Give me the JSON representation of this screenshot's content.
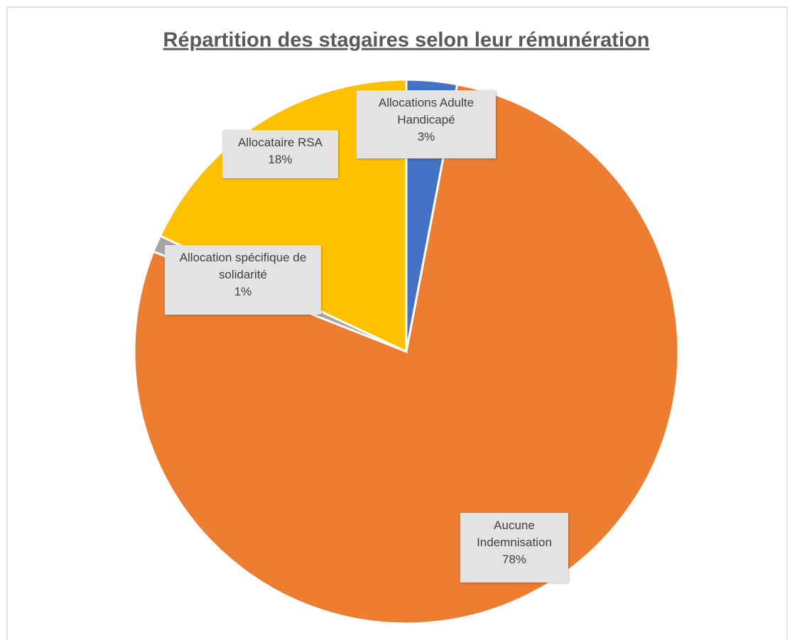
{
  "chart_data": {
    "type": "pie",
    "title": "Répartition des stagaires selon leur rémunération",
    "categories": [
      "Allocations Adulte Handicapé",
      "Aucune Indemnisation",
      "Allocation spécifique de solidarité",
      "Allocataire RSA"
    ],
    "values": [
      3,
      78,
      1,
      18
    ],
    "value_labels": [
      "3%",
      "78%",
      "1%",
      "18%"
    ],
    "colors": [
      "#4472c4",
      "#ed7d31",
      "#a5a5a5",
      "#ffc000"
    ]
  }
}
